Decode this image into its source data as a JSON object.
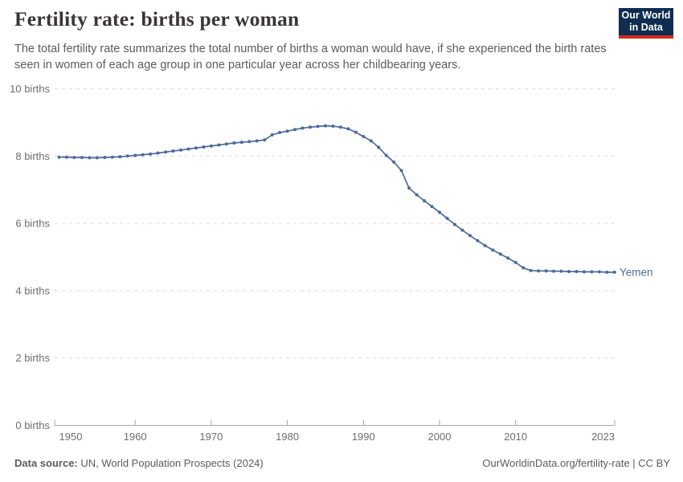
{
  "chart_data": {
    "type": "line",
    "title": "Fertility rate: births per woman",
    "subtitle": "The total fertility rate summarizes the total number of births a woman would have, if she experienced the birth rates seen in women of each age group in one particular year across her childbearing years.",
    "x": [
      1950,
      1951,
      1952,
      1953,
      1954,
      1955,
      1956,
      1957,
      1958,
      1959,
      1960,
      1961,
      1962,
      1963,
      1964,
      1965,
      1966,
      1967,
      1968,
      1969,
      1970,
      1971,
      1972,
      1973,
      1974,
      1975,
      1976,
      1977,
      1978,
      1979,
      1980,
      1981,
      1982,
      1983,
      1984,
      1985,
      1986,
      1987,
      1988,
      1989,
      1990,
      1991,
      1992,
      1993,
      1994,
      1995,
      1996,
      1997,
      1998,
      1999,
      2000,
      2001,
      2002,
      2003,
      2004,
      2005,
      2006,
      2007,
      2008,
      2009,
      2010,
      2011,
      2012,
      2013,
      2014,
      2015,
      2016,
      2017,
      2018,
      2019,
      2020,
      2021,
      2022,
      2023
    ],
    "series": [
      {
        "name": "Yemen",
        "color": "#4C6A9C",
        "values": [
          7.97,
          7.97,
          7.96,
          7.96,
          7.95,
          7.95,
          7.96,
          7.97,
          7.98,
          8.0,
          8.02,
          8.04,
          8.06,
          8.09,
          8.12,
          8.15,
          8.18,
          8.21,
          8.24,
          8.27,
          8.3,
          8.33,
          8.36,
          8.39,
          8.41,
          8.43,
          8.45,
          8.48,
          8.63,
          8.7,
          8.74,
          8.79,
          8.83,
          8.86,
          8.88,
          8.9,
          8.89,
          8.86,
          8.81,
          8.71,
          8.58,
          8.45,
          8.26,
          8.02,
          7.82,
          7.57,
          7.05,
          6.85,
          6.67,
          6.5,
          6.33,
          6.15,
          5.97,
          5.8,
          5.64,
          5.49,
          5.34,
          5.21,
          5.09,
          4.97,
          4.84,
          4.68,
          4.6,
          4.59,
          4.59,
          4.58,
          4.58,
          4.57,
          4.57,
          4.56,
          4.56,
          4.56,
          4.55,
          4.55
        ]
      }
    ],
    "xlabel": "",
    "ylabel": "",
    "xlim": [
      1950,
      2023
    ],
    "ylim": [
      0,
      10
    ],
    "x_ticks": [
      1950,
      1960,
      1970,
      1980,
      1990,
      2000,
      2010,
      2023
    ],
    "y_ticks": [
      0,
      2,
      4,
      6,
      8,
      10
    ],
    "y_tick_suffix": " births",
    "grid": "horizontal-dashed",
    "legend_position": "end-of-line-label",
    "entity_label": "Yemen"
  },
  "header": {
    "logo": {
      "line1": "Our World",
      "line2": "in Data"
    }
  },
  "footer": {
    "datasource_label": "Data source:",
    "datasource_value": " UN, World Population Prospects (2024)",
    "credit": "OurWorldinData.org/fertility-rate | CC BY"
  },
  "colors": {
    "line": "#4C6A9C",
    "logo_bg": "#0f2d51",
    "logo_red": "#d12b1f",
    "grid": "#dcdcdc",
    "axis": "#a8a8a8",
    "tick_text": "#6e6e6e"
  }
}
